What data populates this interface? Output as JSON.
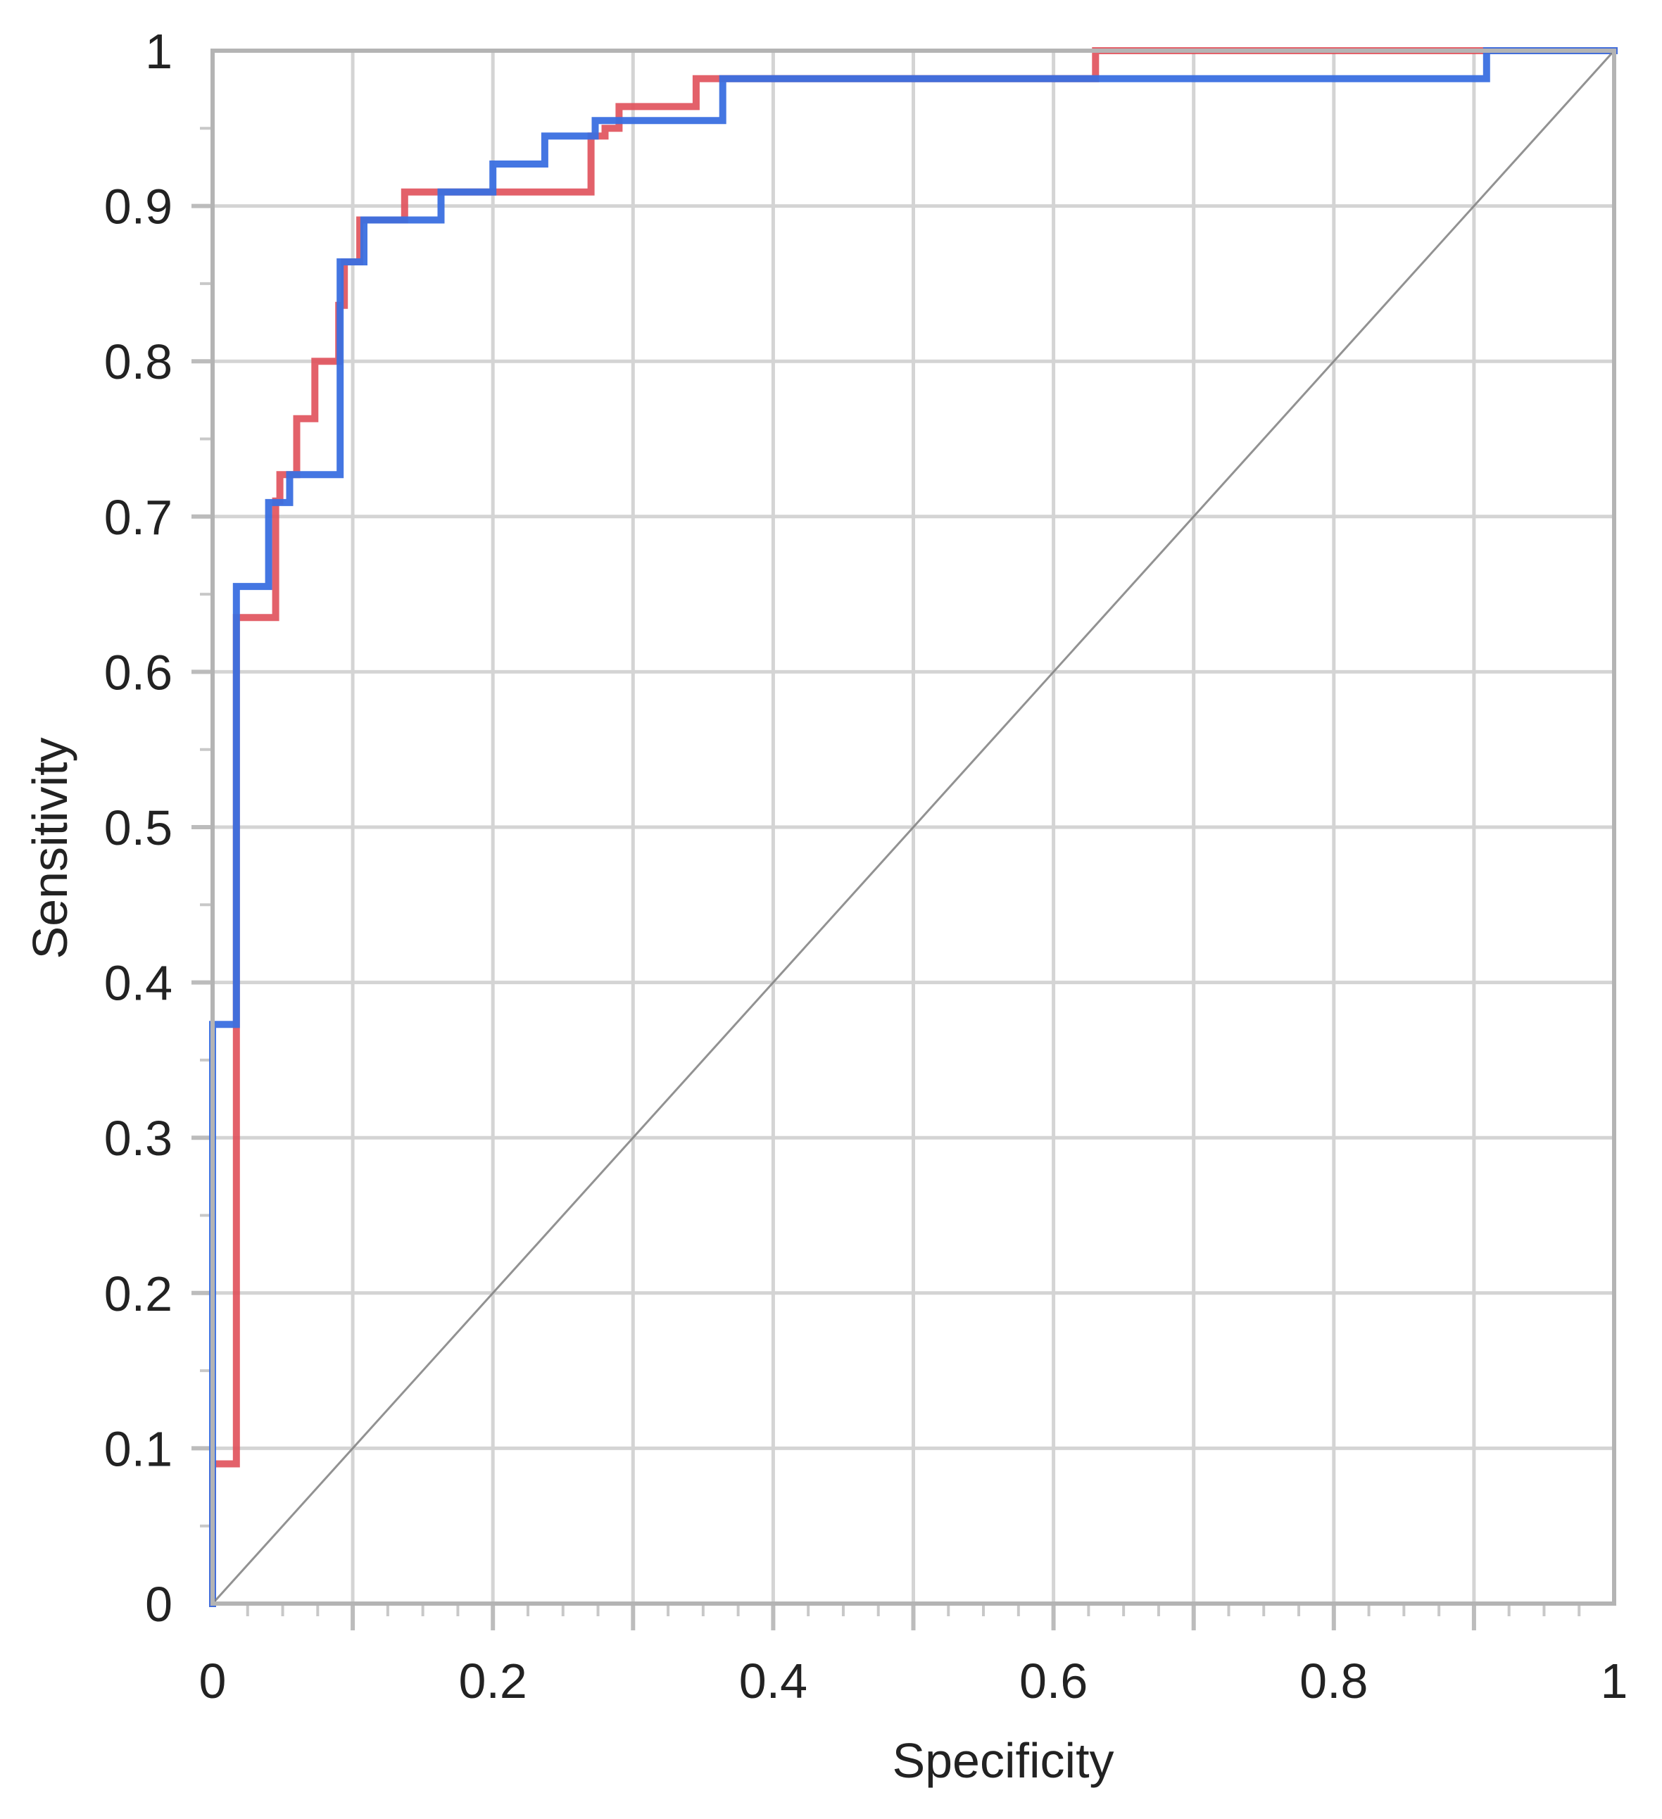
{
  "chart_data": {
    "type": "line",
    "title": "",
    "xlabel": "Specificity",
    "ylabel": "Sensitivity",
    "xlim": [
      0,
      1
    ],
    "ylim": [
      0,
      1
    ],
    "x_ticks": [
      "0",
      "0.2",
      "0.4",
      "0.6",
      "0.8",
      "1"
    ],
    "y_ticks": [
      "0",
      "0.1",
      "0.2",
      "0.3",
      "0.4",
      "0.5",
      "0.6",
      "0.7",
      "0.8",
      "0.9",
      "1"
    ],
    "grid": true,
    "legend": "none",
    "series": [
      {
        "color": "#e0505a",
        "x": [
          0,
          0,
          0.005,
          0.005,
          0.017,
          0.017,
          0.045,
          0.045,
          0.048,
          0.048,
          0.06,
          0.06,
          0.073,
          0.073,
          0.09,
          0.09,
          0.094,
          0.094,
          0.105,
          0.105,
          0.137,
          0.137,
          0.163,
          0.163,
          0.27,
          0.27,
          0.28,
          0.28,
          0.29,
          0.29,
          0.345,
          0.345,
          0.63,
          0.63,
          1
        ],
        "y": [
          0,
          0.09,
          0.09,
          0.09,
          0.09,
          0.635,
          0.635,
          0.71,
          0.71,
          0.727,
          0.727,
          0.763,
          0.763,
          0.8,
          0.8,
          0.836,
          0.836,
          0.864,
          0.864,
          0.891,
          0.891,
          0.909,
          0.909,
          0.909,
          0.909,
          0.945,
          0.945,
          0.95,
          0.95,
          0.964,
          0.964,
          0.982,
          0.982,
          1.0,
          1.0
        ]
      },
      {
        "color": "#3a6fe0",
        "x": [
          0,
          0,
          0.017,
          0.017,
          0.04,
          0.04,
          0.055,
          0.055,
          0.091,
          0.091,
          0.108,
          0.108,
          0.163,
          0.163,
          0.2,
          0.2,
          0.237,
          0.237,
          0.273,
          0.273,
          0.364,
          0.364,
          0.909,
          0.909,
          1
        ],
        "y": [
          0,
          0.373,
          0.373,
          0.655,
          0.655,
          0.709,
          0.709,
          0.727,
          0.727,
          0.864,
          0.864,
          0.891,
          0.891,
          0.909,
          0.909,
          0.927,
          0.927,
          0.945,
          0.945,
          0.955,
          0.955,
          0.982,
          0.982,
          1.0,
          1.0
        ]
      },
      {
        "color": "#7f7f7f",
        "x": [
          0,
          1
        ],
        "y": [
          0,
          1
        ]
      }
    ]
  }
}
